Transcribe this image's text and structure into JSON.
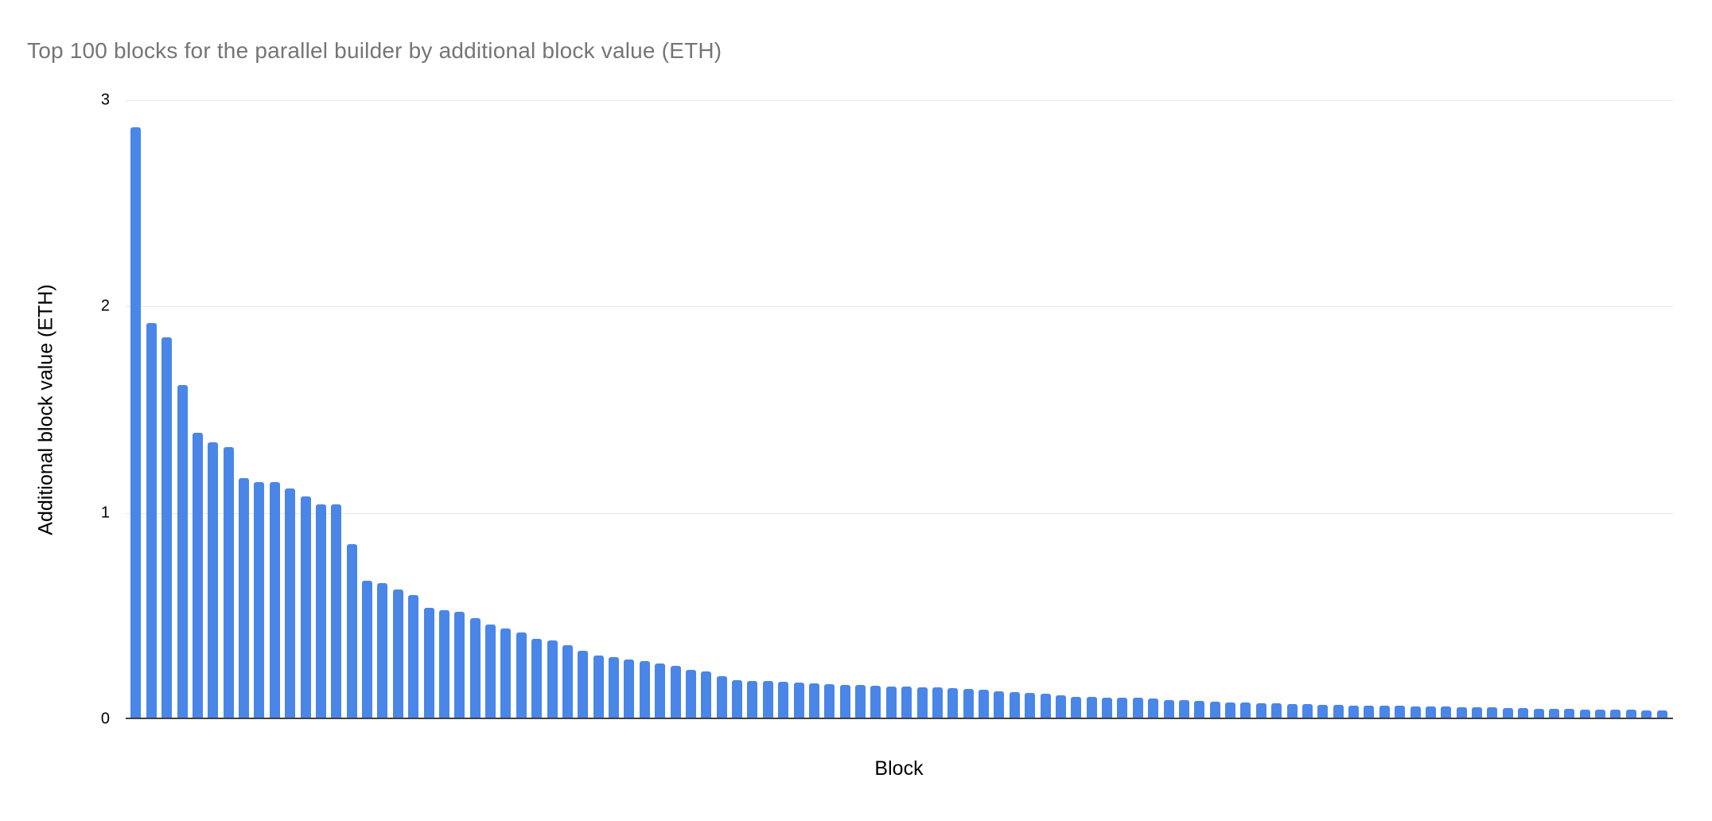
{
  "chart_data": {
    "type": "bar",
    "title": "Top 100 blocks for the parallel builder by additional block value (ETH)",
    "xlabel": "Block",
    "ylabel": "Additional block value (ETH)",
    "ylim": [
      0,
      3
    ],
    "yticks": [
      0,
      1,
      2,
      3
    ],
    "grid": true,
    "legend_position": "none",
    "x_tick_labels_visible": false,
    "bar_count": 100,
    "values": [
      2.87,
      1.92,
      1.85,
      1.62,
      1.39,
      1.34,
      1.32,
      1.17,
      1.15,
      1.15,
      1.12,
      1.08,
      1.04,
      1.04,
      0.85,
      0.67,
      0.66,
      0.63,
      0.6,
      0.54,
      0.53,
      0.52,
      0.49,
      0.46,
      0.44,
      0.42,
      0.39,
      0.38,
      0.36,
      0.33,
      0.31,
      0.3,
      0.29,
      0.28,
      0.27,
      0.26,
      0.24,
      0.23,
      0.21,
      0.19,
      0.186,
      0.184,
      0.181,
      0.179,
      0.172,
      0.169,
      0.167,
      0.164,
      0.162,
      0.159,
      0.157,
      0.155,
      0.153,
      0.15,
      0.146,
      0.142,
      0.134,
      0.131,
      0.128,
      0.124,
      0.115,
      0.109,
      0.107,
      0.106,
      0.105,
      0.104,
      0.101,
      0.094,
      0.091,
      0.089,
      0.085,
      0.082,
      0.08,
      0.078,
      0.076,
      0.074,
      0.072,
      0.07,
      0.068,
      0.067,
      0.066,
      0.065,
      0.064,
      0.063,
      0.062,
      0.06,
      0.058,
      0.057,
      0.056,
      0.054,
      0.053,
      0.052,
      0.051,
      0.049,
      0.048,
      0.047,
      0.046,
      0.045,
      0.043,
      0.042
    ]
  },
  "colors": {
    "bar": "#4a86e8",
    "title_text": "#757575",
    "axis_text": "#000000",
    "gridline": "#e6e6e6",
    "baseline": "#424242",
    "background": "#ffffff"
  }
}
